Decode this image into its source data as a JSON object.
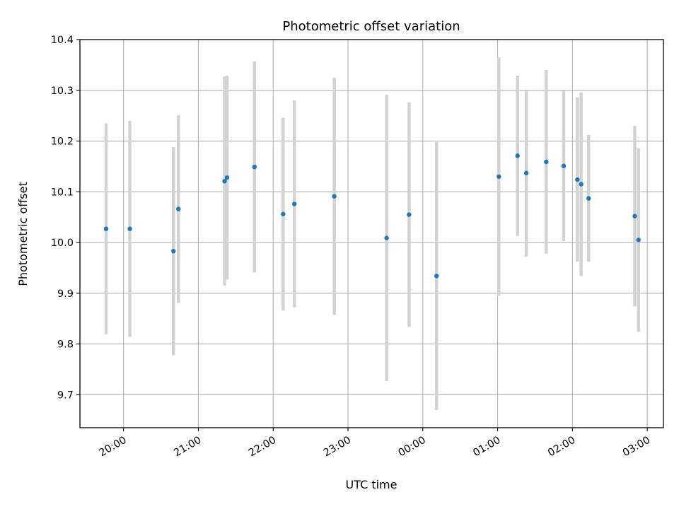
{
  "chart_data": {
    "type": "scatter",
    "title": "Photometric offset variation",
    "xlabel": "UTC time",
    "ylabel": "Photometric offset",
    "x_unit": "UTC time",
    "x_tick_labels": [
      "20:00",
      "21:00",
      "22:00",
      "23:00",
      "00:00",
      "01:00",
      "02:00",
      "03:00"
    ],
    "x_tick_times": [
      "2000-01-01T20:00",
      "2000-01-01T21:00",
      "2000-01-01T22:00",
      "2000-01-01T23:00",
      "2000-01-02T00:00",
      "2000-01-02T01:00",
      "2000-01-02T02:00",
      "2000-01-02T03:00"
    ],
    "xlim": [
      "2000-01-01T19:25",
      "2000-01-02T03:13"
    ],
    "y_ticks": [
      9.7,
      9.8,
      9.9,
      10.0,
      10.1,
      10.2,
      10.3,
      10.4
    ],
    "ylim": [
      9.635,
      10.4
    ],
    "grid": true,
    "marker_color": "#1f77b4",
    "errorbar_color": "#d3d3d3",
    "points": [
      {
        "t": "2000-01-01T19:46",
        "y": 10.027,
        "err": 0.208
      },
      {
        "t": "2000-01-01T20:05",
        "y": 10.027,
        "err": 0.213
      },
      {
        "t": "2000-01-01T20:40",
        "y": 9.983,
        "err": 0.205
      },
      {
        "t": "2000-01-01T20:44",
        "y": 10.066,
        "err": 0.185
      },
      {
        "t": "2000-01-01T21:21",
        "y": 10.121,
        "err": 0.206
      },
      {
        "t": "2000-01-01T21:23",
        "y": 10.128,
        "err": 0.201
      },
      {
        "t": "2000-01-01T21:45",
        "y": 10.149,
        "err": 0.208
      },
      {
        "t": "2000-01-01T22:08",
        "y": 10.056,
        "err": 0.19
      },
      {
        "t": "2000-01-01T22:17",
        "y": 10.076,
        "err": 0.204
      },
      {
        "t": "2000-01-01T22:49",
        "y": 10.091,
        "err": 0.234
      },
      {
        "t": "2000-01-01T23:31",
        "y": 10.009,
        "err": 0.282
      },
      {
        "t": "2000-01-01T23:49",
        "y": 10.055,
        "err": 0.221
      },
      {
        "t": "2000-01-02T00:11",
        "y": 9.934,
        "err": 0.264
      },
      {
        "t": "2000-01-02T01:01",
        "y": 10.13,
        "err": 0.235
      },
      {
        "t": "2000-01-02T01:16",
        "y": 10.171,
        "err": 0.158
      },
      {
        "t": "2000-01-02T01:23",
        "y": 10.137,
        "err": 0.165
      },
      {
        "t": "2000-01-02T01:39",
        "y": 10.159,
        "err": 0.181
      },
      {
        "t": "2000-01-02T01:53",
        "y": 10.151,
        "err": 0.148
      },
      {
        "t": "2000-01-02T02:04",
        "y": 10.124,
        "err": 0.162
      },
      {
        "t": "2000-01-02T02:07",
        "y": 10.115,
        "err": 0.181
      },
      {
        "t": "2000-01-02T02:13",
        "y": 10.087,
        "err": 0.125
      },
      {
        "t": "2000-01-02T02:50",
        "y": 10.052,
        "err": 0.178
      },
      {
        "t": "2000-01-02T02:53",
        "y": 10.005,
        "err": 0.181
      }
    ]
  }
}
